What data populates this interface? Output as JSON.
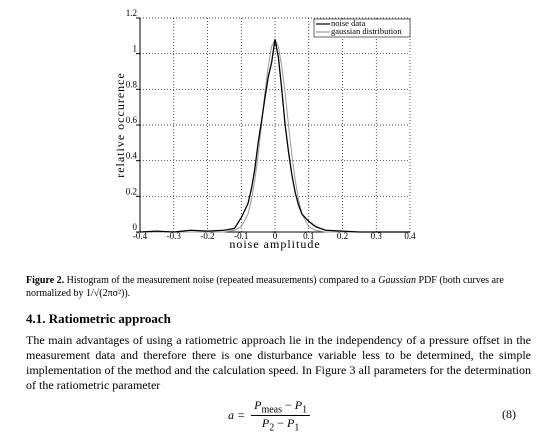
{
  "chart_data": {
    "type": "line",
    "x_label": "noise amplitude",
    "y_label": "relative occurence",
    "x": [
      -0.4,
      -0.35,
      -0.3,
      -0.25,
      -0.2,
      -0.15,
      -0.12,
      -0.1,
      -0.08,
      -0.07,
      -0.06,
      -0.05,
      -0.04,
      -0.03,
      -0.02,
      -0.01,
      0,
      0.01,
      0.02,
      0.03,
      0.04,
      0.05,
      0.06,
      0.07,
      0.08,
      0.1,
      0.12,
      0.15,
      0.2,
      0.25,
      0.3,
      0.35,
      0.4
    ],
    "series": [
      {
        "name": "noise data",
        "color": "#000000",
        "values": [
          0,
          0.005,
          0,
          0.01,
          0.005,
          0.01,
          0.02,
          0.08,
          0.16,
          0.24,
          0.35,
          0.5,
          0.62,
          0.75,
          0.87,
          0.95,
          1.08,
          0.98,
          0.8,
          0.6,
          0.45,
          0.32,
          0.22,
          0.15,
          0.1,
          0.06,
          0.03,
          0.01,
          0.005,
          0,
          0,
          0,
          0
        ]
      },
      {
        "name": "gaussian distribution",
        "color": "#999999",
        "values": [
          0,
          0,
          0,
          0,
          0,
          0,
          0.01,
          0.03,
          0.1,
          0.18,
          0.29,
          0.43,
          0.6,
          0.78,
          0.93,
          1.04,
          1.08,
          1.04,
          0.93,
          0.78,
          0.6,
          0.43,
          0.29,
          0.18,
          0.1,
          0.03,
          0.01,
          0,
          0,
          0,
          0,
          0,
          0
        ]
      }
    ],
    "xlim": [
      -0.4,
      0.4
    ],
    "xticks": [
      -0.4,
      -0.3,
      -0.2,
      -0.1,
      0,
      0.1,
      0.2,
      0.3,
      0.4
    ],
    "ylim": [
      0,
      1.2
    ],
    "yticks": [
      0,
      0.2,
      0.4,
      0.6,
      0.8,
      1,
      1.2
    ],
    "grid": true,
    "legend": "upper right"
  },
  "caption": {
    "label": "Figure 2.",
    "text": "Histogram of the measurement noise (repeated measurements) compared to a ",
    "italic": "Gaussian",
    "text_end": "PDF (both curves are normalized by 1/√(2πσ²))."
  },
  "section": {
    "heading": "4.1. Ratiometric approach",
    "paragraph": "The main advantages of using a ratiometric approach lie in the independency of a pressure offset in the measurement data and therefore there is one disturbance variable less to be determined, the simple implementation of the method and the calculation speed. In Figure 3 all parameters for the determination of the ratiometric parameter"
  },
  "equation": {
    "lhs": "a =",
    "numerator": {
      "terms": [
        {
          "base": "P",
          "sub": "meas"
        },
        {
          "base": "P",
          "sub": "1"
        }
      ],
      "op": "−"
    },
    "denominator": {
      "terms": [
        {
          "base": "P",
          "sub": "2"
        },
        {
          "base": "P",
          "sub": "1"
        }
      ],
      "op": "−"
    },
    "number": "(8)"
  }
}
